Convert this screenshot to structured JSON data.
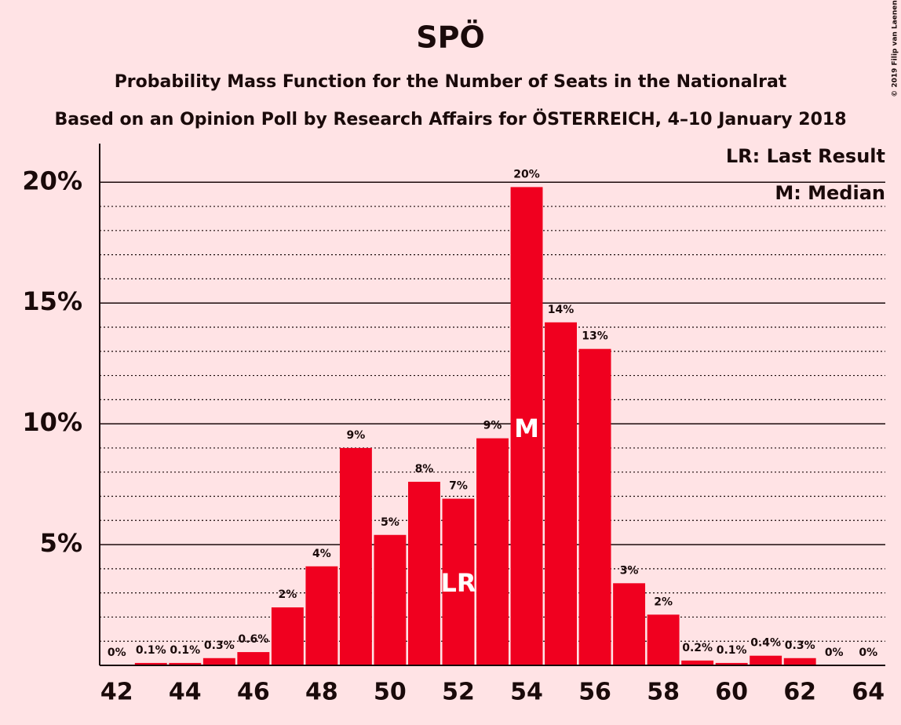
{
  "chart_data": {
    "type": "bar",
    "title": "SPÖ",
    "subtitle": "Probability Mass Function for the Number of Seats in the Nationalrat",
    "subtitle2": "Based on an Opinion Poll by Research Affairs for ÖSTERREICH, 4–10 January 2018",
    "copyright": "© 2019 Filip van Laenen",
    "categories": [
      42,
      null,
      44,
      null,
      46,
      null,
      48,
      null,
      50,
      null,
      52,
      null,
      54,
      null,
      56,
      null,
      58,
      null,
      60,
      null,
      62,
      null,
      64
    ],
    "values": [
      0,
      0.1,
      0.1,
      0.3,
      0.55,
      2.4,
      4.1,
      9.0,
      5.4,
      7.6,
      6.9,
      9.4,
      19.8,
      14.2,
      13.1,
      3.4,
      2.1,
      0.2,
      0.1,
      0.4,
      0.3,
      0,
      0
    ],
    "value_labels": [
      "0%",
      "0.1%",
      "0.1%",
      "0.3%",
      "0.6%",
      "2%",
      "4%",
      "9%",
      "5%",
      "8%",
      "7%",
      "9%",
      "20%",
      "14%",
      "13%",
      "3%",
      "2%",
      "0.2%",
      "0.1%",
      "0.4%",
      "0.3%",
      "0%",
      "0%"
    ],
    "color": "#f0001f",
    "ylim": [
      0,
      21.6
    ],
    "yticks": [
      {
        "value": 5,
        "label": "5%"
      },
      {
        "value": 10,
        "label": "10%"
      },
      {
        "value": 15,
        "label": "15%"
      },
      {
        "value": 20,
        "label": "20%"
      }
    ],
    "minor_yticks": [
      1,
      2,
      3,
      4,
      6,
      7,
      8,
      9,
      11,
      12,
      13,
      14,
      16,
      17,
      18,
      19
    ],
    "grid": true,
    "annotations": [
      {
        "text": "LR",
        "x": 52
      },
      {
        "text": "M",
        "x": 54
      }
    ],
    "legend": [
      "LR: Last Result",
      "M: Median"
    ]
  }
}
